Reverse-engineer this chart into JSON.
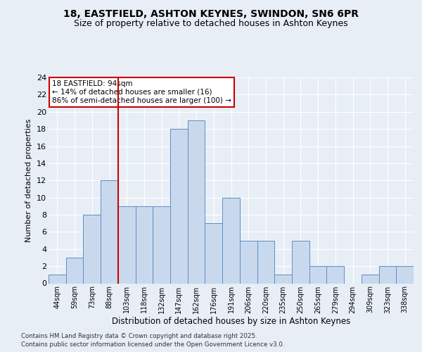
{
  "title_line1": "18, EASTFIELD, ASHTON KEYNES, SWINDON, SN6 6PR",
  "title_line2": "Size of property relative to detached houses in Ashton Keynes",
  "categories": [
    "44sqm",
    "59sqm",
    "73sqm",
    "88sqm",
    "103sqm",
    "118sqm",
    "132sqm",
    "147sqm",
    "162sqm",
    "176sqm",
    "191sqm",
    "206sqm",
    "220sqm",
    "235sqm",
    "250sqm",
    "265sqm",
    "279sqm",
    "294sqm",
    "309sqm",
    "323sqm",
    "338sqm"
  ],
  "values": [
    1,
    3,
    8,
    12,
    9,
    9,
    9,
    18,
    19,
    7,
    10,
    5,
    5,
    1,
    5,
    2,
    2,
    0,
    1,
    2,
    2
  ],
  "bar_color": "#c9d9ed",
  "bar_edge_color": "#5b8ec4",
  "vline_x_idx": 3.5,
  "vline_color": "#cc0000",
  "annotation_text": "18 EASTFIELD: 94sqm\n← 14% of detached houses are smaller (16)\n86% of semi-detached houses are larger (100) →",
  "annotation_box_color": "#cc0000",
  "xlabel": "Distribution of detached houses by size in Ashton Keynes",
  "ylabel": "Number of detached properties",
  "ylim": [
    0,
    24
  ],
  "yticks": [
    0,
    2,
    4,
    6,
    8,
    10,
    12,
    14,
    16,
    18,
    20,
    22,
    24
  ],
  "background_color": "#e8eef6",
  "plot_bg_color": "#e8eef6",
  "grid_color": "#ffffff",
  "footer_line1": "Contains HM Land Registry data © Crown copyright and database right 2025.",
  "footer_line2": "Contains public sector information licensed under the Open Government Licence v3.0."
}
